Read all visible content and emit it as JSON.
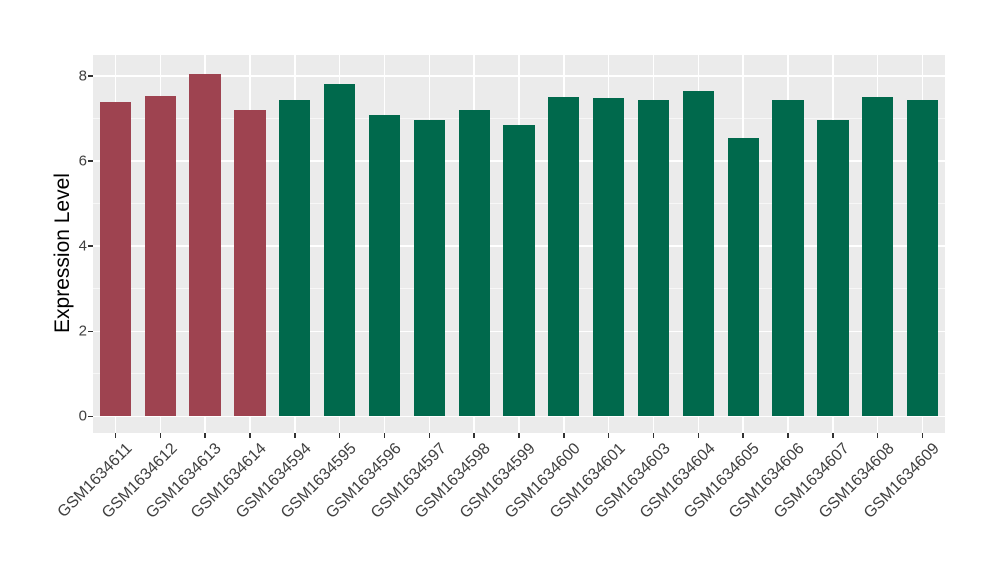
{
  "chart_data": {
    "type": "bar",
    "title": "",
    "xlabel": "",
    "ylabel": "Expression Level",
    "categories": [
      "GSM1634611",
      "GSM1634612",
      "GSM1634613",
      "GSM1634614",
      "GSM1634594",
      "GSM1634595",
      "GSM1634596",
      "GSM1634597",
      "GSM1634598",
      "GSM1634599",
      "GSM1634600",
      "GSM1634601",
      "GSM1634603",
      "GSM1634604",
      "GSM1634605",
      "GSM1634606",
      "GSM1634607",
      "GSM1634608",
      "GSM1634609"
    ],
    "values": [
      7.38,
      7.53,
      8.04,
      7.21,
      7.44,
      7.8,
      7.08,
      6.96,
      7.21,
      6.84,
      7.5,
      7.48,
      7.43,
      7.64,
      6.53,
      7.43,
      6.96,
      7.5,
      7.43
    ],
    "bar_colors": [
      "#9E4350",
      "#9E4350",
      "#9E4350",
      "#9E4350",
      "#00694C",
      "#00694C",
      "#00694C",
      "#00694C",
      "#00694C",
      "#00694C",
      "#00694C",
      "#00694C",
      "#00694C",
      "#00694C",
      "#00694C",
      "#00694C",
      "#00694C",
      "#00694C",
      "#00694C"
    ],
    "group_colors": {
      "highlighted_group": "#9E4350",
      "default_group": "#00694C"
    },
    "y_axis": {
      "ticks": [
        0,
        2,
        4,
        6,
        8
      ],
      "minor_ticks": [
        1,
        3,
        5,
        7
      ],
      "lim": [
        -0.39,
        8.49
      ]
    },
    "baseline": 0,
    "legend": "none",
    "grid": "major-and-minor-white",
    "panel_bg": "#EBEBEB",
    "tick_label_color": "#404040",
    "axis_title_color": "#000000"
  }
}
